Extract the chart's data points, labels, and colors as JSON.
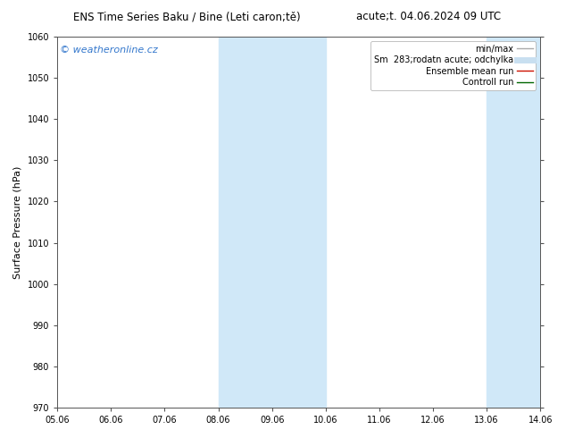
{
  "title_left": "ENS Time Series Baku / Bine (Leti caron;tě)",
  "title_right": "acute;t. 04.06.2024 09 UTC",
  "ylabel": "Surface Pressure (hPa)",
  "ylim": [
    970,
    1060
  ],
  "yticks": [
    970,
    980,
    990,
    1000,
    1010,
    1020,
    1030,
    1040,
    1050,
    1060
  ],
  "xtick_labels": [
    "05.06",
    "06.06",
    "07.06",
    "08.06",
    "09.06",
    "10.06",
    "11.06",
    "12.06",
    "13.06",
    "14.06"
  ],
  "xtick_positions": [
    0,
    1,
    2,
    3,
    4,
    5,
    6,
    7,
    8,
    9
  ],
  "xlim": [
    0,
    9
  ],
  "shaded_regions": [
    {
      "xstart": 3,
      "xend": 5,
      "color": "#d0e8f8"
    },
    {
      "xstart": 8,
      "xend": 9,
      "color": "#d0e8f8"
    }
  ],
  "watermark_text": "© weatheronline.cz",
  "watermark_color": "#3377cc",
  "legend_entries": [
    {
      "label": "min/max",
      "color": "#aaaaaa",
      "lw": 1.0
    },
    {
      "label": "Sm  283;rodatn acute; odchylka",
      "color": "#c8dff0",
      "lw": 5
    },
    {
      "label": "Ensemble mean run",
      "color": "#cc1100",
      "lw": 1.0
    },
    {
      "label": "Controll run",
      "color": "#006600",
      "lw": 1.0
    }
  ],
  "background_color": "#ffffff",
  "title_fontsize": 8.5,
  "axis_label_fontsize": 8,
  "tick_fontsize": 7,
  "legend_fontsize": 7,
  "watermark_fontsize": 8
}
